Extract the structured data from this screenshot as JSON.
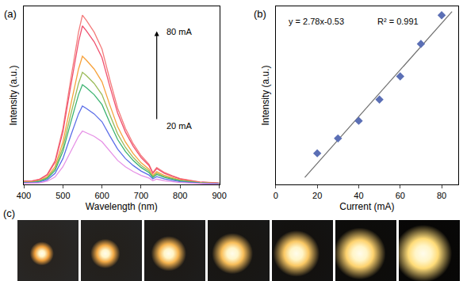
{
  "chart_data": [
    {
      "type": "line",
      "panel_label": "(a)",
      "x_label": "Wavelength (nm)",
      "y_label": "Intensity (a.u.)",
      "xlim": [
        400,
        900
      ],
      "xticks": [
        400,
        500,
        600,
        700,
        800,
        900
      ],
      "ylim": [
        0,
        1
      ],
      "tick_labels": "x",
      "grid": false,
      "annotations": [
        {
          "text": "80 mA"
        },
        {
          "text": "20 mA"
        }
      ],
      "x": [
        400,
        420,
        440,
        460,
        480,
        500,
        520,
        540,
        550,
        560,
        580,
        600,
        620,
        640,
        660,
        680,
        700,
        720,
        730,
        740,
        760,
        780,
        800,
        850,
        900
      ],
      "series": [
        {
          "color": "#f47c7c",
          "values": [
            0.019,
            0.019,
            0.029,
            0.057,
            0.133,
            0.314,
            0.589,
            0.855,
            0.95,
            0.922,
            0.855,
            0.76,
            0.589,
            0.428,
            0.314,
            0.228,
            0.162,
            0.114,
            0.067,
            0.095,
            0.067,
            0.048,
            0.033,
            0.014,
            0.008
          ]
        },
        {
          "color": "#f0506e",
          "values": [
            0.018,
            0.018,
            0.027,
            0.053,
            0.125,
            0.294,
            0.552,
            0.801,
            0.89,
            0.863,
            0.801,
            0.712,
            0.552,
            0.401,
            0.294,
            0.214,
            0.151,
            0.107,
            0.062,
            0.089,
            0.062,
            0.045,
            0.031,
            0.013,
            0.007
          ]
        },
        {
          "color": "#f7a23c",
          "values": [
            0.014,
            0.014,
            0.022,
            0.043,
            0.101,
            0.238,
            0.446,
            0.648,
            0.72,
            0.698,
            0.648,
            0.576,
            0.446,
            0.324,
            0.238,
            0.173,
            0.122,
            0.086,
            0.05,
            0.072,
            0.05,
            0.036,
            0.025,
            0.011,
            0.006
          ]
        },
        {
          "color": "#9bbb59",
          "values": [
            0.013,
            0.013,
            0.019,
            0.038,
            0.088,
            0.208,
            0.391,
            0.567,
            0.63,
            0.611,
            0.567,
            0.504,
            0.391,
            0.284,
            0.208,
            0.151,
            0.107,
            0.076,
            0.044,
            0.063,
            0.044,
            0.032,
            0.022,
            0.009,
            0.005
          ]
        },
        {
          "color": "#3cb371",
          "values": [
            0.011,
            0.011,
            0.017,
            0.034,
            0.078,
            0.185,
            0.347,
            0.504,
            0.56,
            0.543,
            0.504,
            0.448,
            0.347,
            0.252,
            0.185,
            0.134,
            0.095,
            0.067,
            0.039,
            0.056,
            0.039,
            0.028,
            0.02,
            0.008,
            0.004
          ]
        },
        {
          "color": "#5b6ee8",
          "values": [
            0.009,
            0.009,
            0.013,
            0.026,
            0.062,
            0.145,
            0.273,
            0.396,
            0.44,
            0.427,
            0.396,
            0.352,
            0.273,
            0.198,
            0.145,
            0.106,
            0.075,
            0.053,
            0.031,
            0.044,
            0.031,
            0.022,
            0.015,
            0.007,
            0.004
          ]
        },
        {
          "color": "#e691e6",
          "values": [
            0.006,
            0.006,
            0.009,
            0.018,
            0.042,
            0.099,
            0.186,
            0.27,
            0.3,
            0.291,
            0.27,
            0.24,
            0.186,
            0.135,
            0.099,
            0.072,
            0.051,
            0.036,
            0.021,
            0.03,
            0.021,
            0.015,
            0.011,
            0.005,
            0.002
          ]
        }
      ]
    },
    {
      "type": "scatter",
      "panel_label": "(b)",
      "x_label": "Current (mA)",
      "y_label": "Intensity (a.u.)",
      "xlim": [
        0,
        88
      ],
      "xticks": [
        0,
        20,
        40,
        60,
        80
      ],
      "ylim": [
        30,
        242
      ],
      "tick_labels": "x",
      "grid": false,
      "annotations": [
        {
          "text": "y = 2.78x-0.53"
        },
        {
          "text": "R² = 0.991"
        }
      ],
      "series": [
        {
          "type": "line",
          "color": "#6e6e6e",
          "line_style": "solid",
          "x": [
            14,
            85
          ],
          "values": [
            38.39,
            235.77
          ]
        },
        {
          "type": "scatter",
          "color": "#5b6fb5",
          "marker": "diamond",
          "x": [
            20,
            30,
            40,
            50,
            60,
            70,
            80
          ],
          "values": [
            67.1,
            84.8,
            105.7,
            131.1,
            158.6,
            197.2,
            231.4
          ]
        }
      ]
    },
    {
      "type": "photos",
      "panel_label": "(c)",
      "count": 7
    }
  ]
}
